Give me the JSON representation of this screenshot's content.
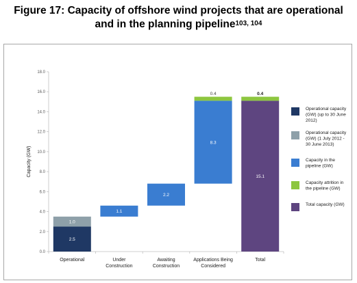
{
  "title": {
    "line1": "Figure 17: Capacity of offshore wind projects that are operational",
    "line2": "and in the planning pipeline",
    "refs": "103, 104"
  },
  "chart_data": {
    "type": "bar",
    "stacked_waterfall": true,
    "categories": [
      "Operational",
      "Under Construction",
      "Awaiting Construction",
      "Applications Being Considered",
      "Total"
    ],
    "ylabel": "Capacity (GW)",
    "xlabel": "",
    "ylim": [
      0,
      18
    ],
    "yticks": [
      "0.0",
      "2.0",
      "4.0",
      "6.0",
      "8.0",
      "10.0",
      "12.0",
      "14.0",
      "16.0",
      "18.0"
    ],
    "grid": false,
    "legend_position": "right",
    "series": [
      {
        "name": "Operational capacity (GW) (up to 30 June 2012)",
        "color": "#1f3864"
      },
      {
        "name": "Operational capacity (GW) (1 July 2012 - 30 June 2013)",
        "color": "#8ea0a9"
      },
      {
        "name": "Capacity in the pipeline (GW)",
        "color": "#3a7dd1"
      },
      {
        "name": "Capacity attrition in the pipeline (GW)",
        "color": "#8dc63f"
      },
      {
        "name": "Total capacity (GW)",
        "color": "#5e4580"
      }
    ],
    "segments": [
      {
        "category": 0,
        "series": 0,
        "base": 0.0,
        "value": 2.5,
        "label": "2.5",
        "label_color": "#ffffff"
      },
      {
        "category": 0,
        "series": 1,
        "base": 2.5,
        "value": 1.0,
        "label": "1.0",
        "label_color": "#ffffff"
      },
      {
        "category": 1,
        "series": 2,
        "base": 3.5,
        "value": 1.1,
        "label": "1.1",
        "label_color": "#ffffff"
      },
      {
        "category": 2,
        "series": 2,
        "base": 4.6,
        "value": 2.2,
        "label": "2.2",
        "label_color": "#ffffff"
      },
      {
        "category": 3,
        "series": 2,
        "base": 6.8,
        "value": 8.3,
        "label": "8.3",
        "label_color": "#ffffff"
      },
      {
        "category": 3,
        "series": 3,
        "base": 15.1,
        "value": 0.4,
        "label": "0.4",
        "label_color": "#404040"
      },
      {
        "category": 4,
        "series": 4,
        "base": 0.0,
        "value": 15.1,
        "label": "15.1",
        "label_color": "#ffffff"
      },
      {
        "category": 4,
        "series": 3,
        "base": 15.1,
        "value": 0.4,
        "label": "0.4",
        "label_color": "#1a1a1a"
      }
    ]
  }
}
